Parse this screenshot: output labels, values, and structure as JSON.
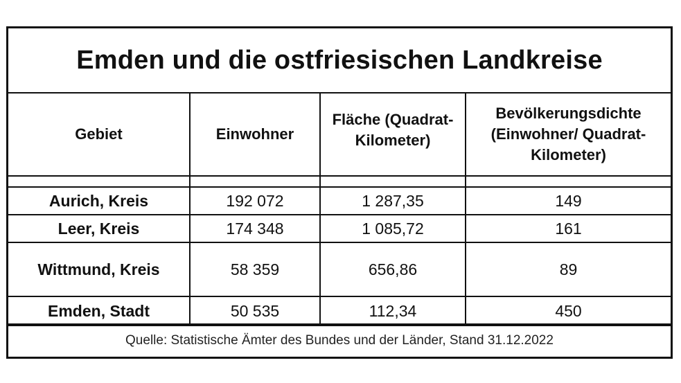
{
  "title": "Emden und die ostfriesischen Landkreise",
  "columns": {
    "gebiet": "Gebiet",
    "einwohner": "Einwohner",
    "flaeche_1": "Fläche (Quadrat-",
    "flaeche_2": "Kilometer)",
    "dichte_1": "Bevölkerungsdichte",
    "dichte_2": "(Einwohner/ Quadrat-",
    "dichte_3": "Kilometer)"
  },
  "rows": [
    {
      "gebiet": "Aurich, Kreis",
      "einwohner": "192 072",
      "flaeche": "1 287,35",
      "dichte": "149"
    },
    {
      "gebiet": "Leer, Kreis",
      "einwohner": "174 348",
      "flaeche": "1 085,72",
      "dichte": "161"
    },
    {
      "gebiet": "Wittmund, Kreis",
      "einwohner": "58 359",
      "flaeche": "656,86",
      "dichte": "89"
    },
    {
      "gebiet": "Emden, Stadt",
      "einwohner": "50 535",
      "flaeche": "112,34",
      "dichte": "450"
    }
  ],
  "source": "Quelle: Statistische Ämter des Bundes und der Länder, Stand 31.12.2022"
}
